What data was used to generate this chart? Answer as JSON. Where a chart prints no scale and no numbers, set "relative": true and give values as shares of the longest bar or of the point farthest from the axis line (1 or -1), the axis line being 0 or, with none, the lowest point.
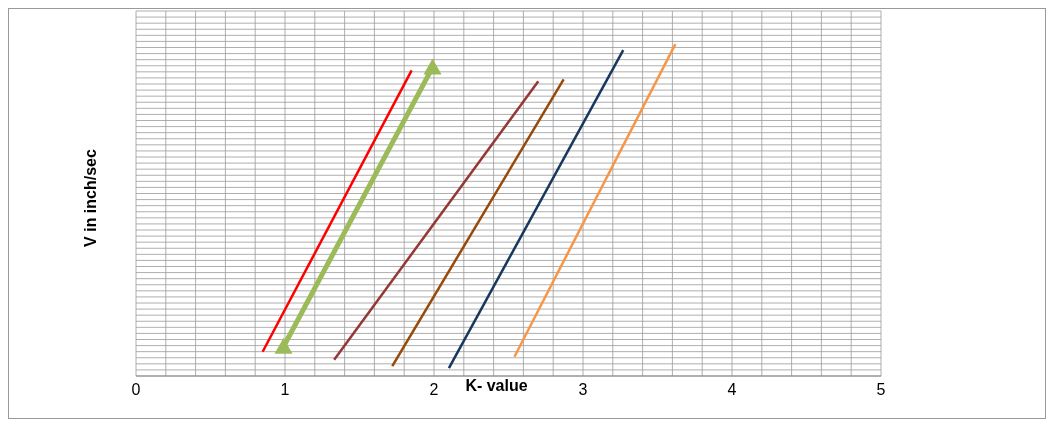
{
  "chart_data": {
    "type": "line",
    "xlabel": "K- value",
    "ylabel": "V in inch/sec",
    "relative": true,
    "xlim": [
      0,
      5
    ],
    "xticks": [
      0,
      1,
      2,
      3,
      4,
      5
    ],
    "grid": true,
    "marker": "none",
    "line_style": "solid",
    "series": [
      {
        "color": "#ff0000",
        "x": [
          0.85,
          1.85
        ],
        "values": [
          0.073,
          0.921
        ]
      },
      {
        "color": "#9bbb59",
        "x": [
          0.99,
          1.99
        ],
        "values": [
          0.088,
          0.93
        ],
        "marker": "triangle"
      },
      {
        "color": "#953735",
        "x": [
          1.33,
          2.7
        ],
        "values": [
          0.049,
          0.888
        ]
      },
      {
        "color": "#984807",
        "x": [
          1.72,
          2.87
        ],
        "values": [
          0.03,
          0.894
        ]
      },
      {
        "color": "#17375e",
        "x": [
          2.1,
          3.27
        ],
        "values": [
          0.024,
          0.982
        ]
      },
      {
        "color": "#f79646",
        "x": [
          2.54,
          3.62
        ],
        "values": [
          0.058,
          1
        ]
      }
    ]
  }
}
